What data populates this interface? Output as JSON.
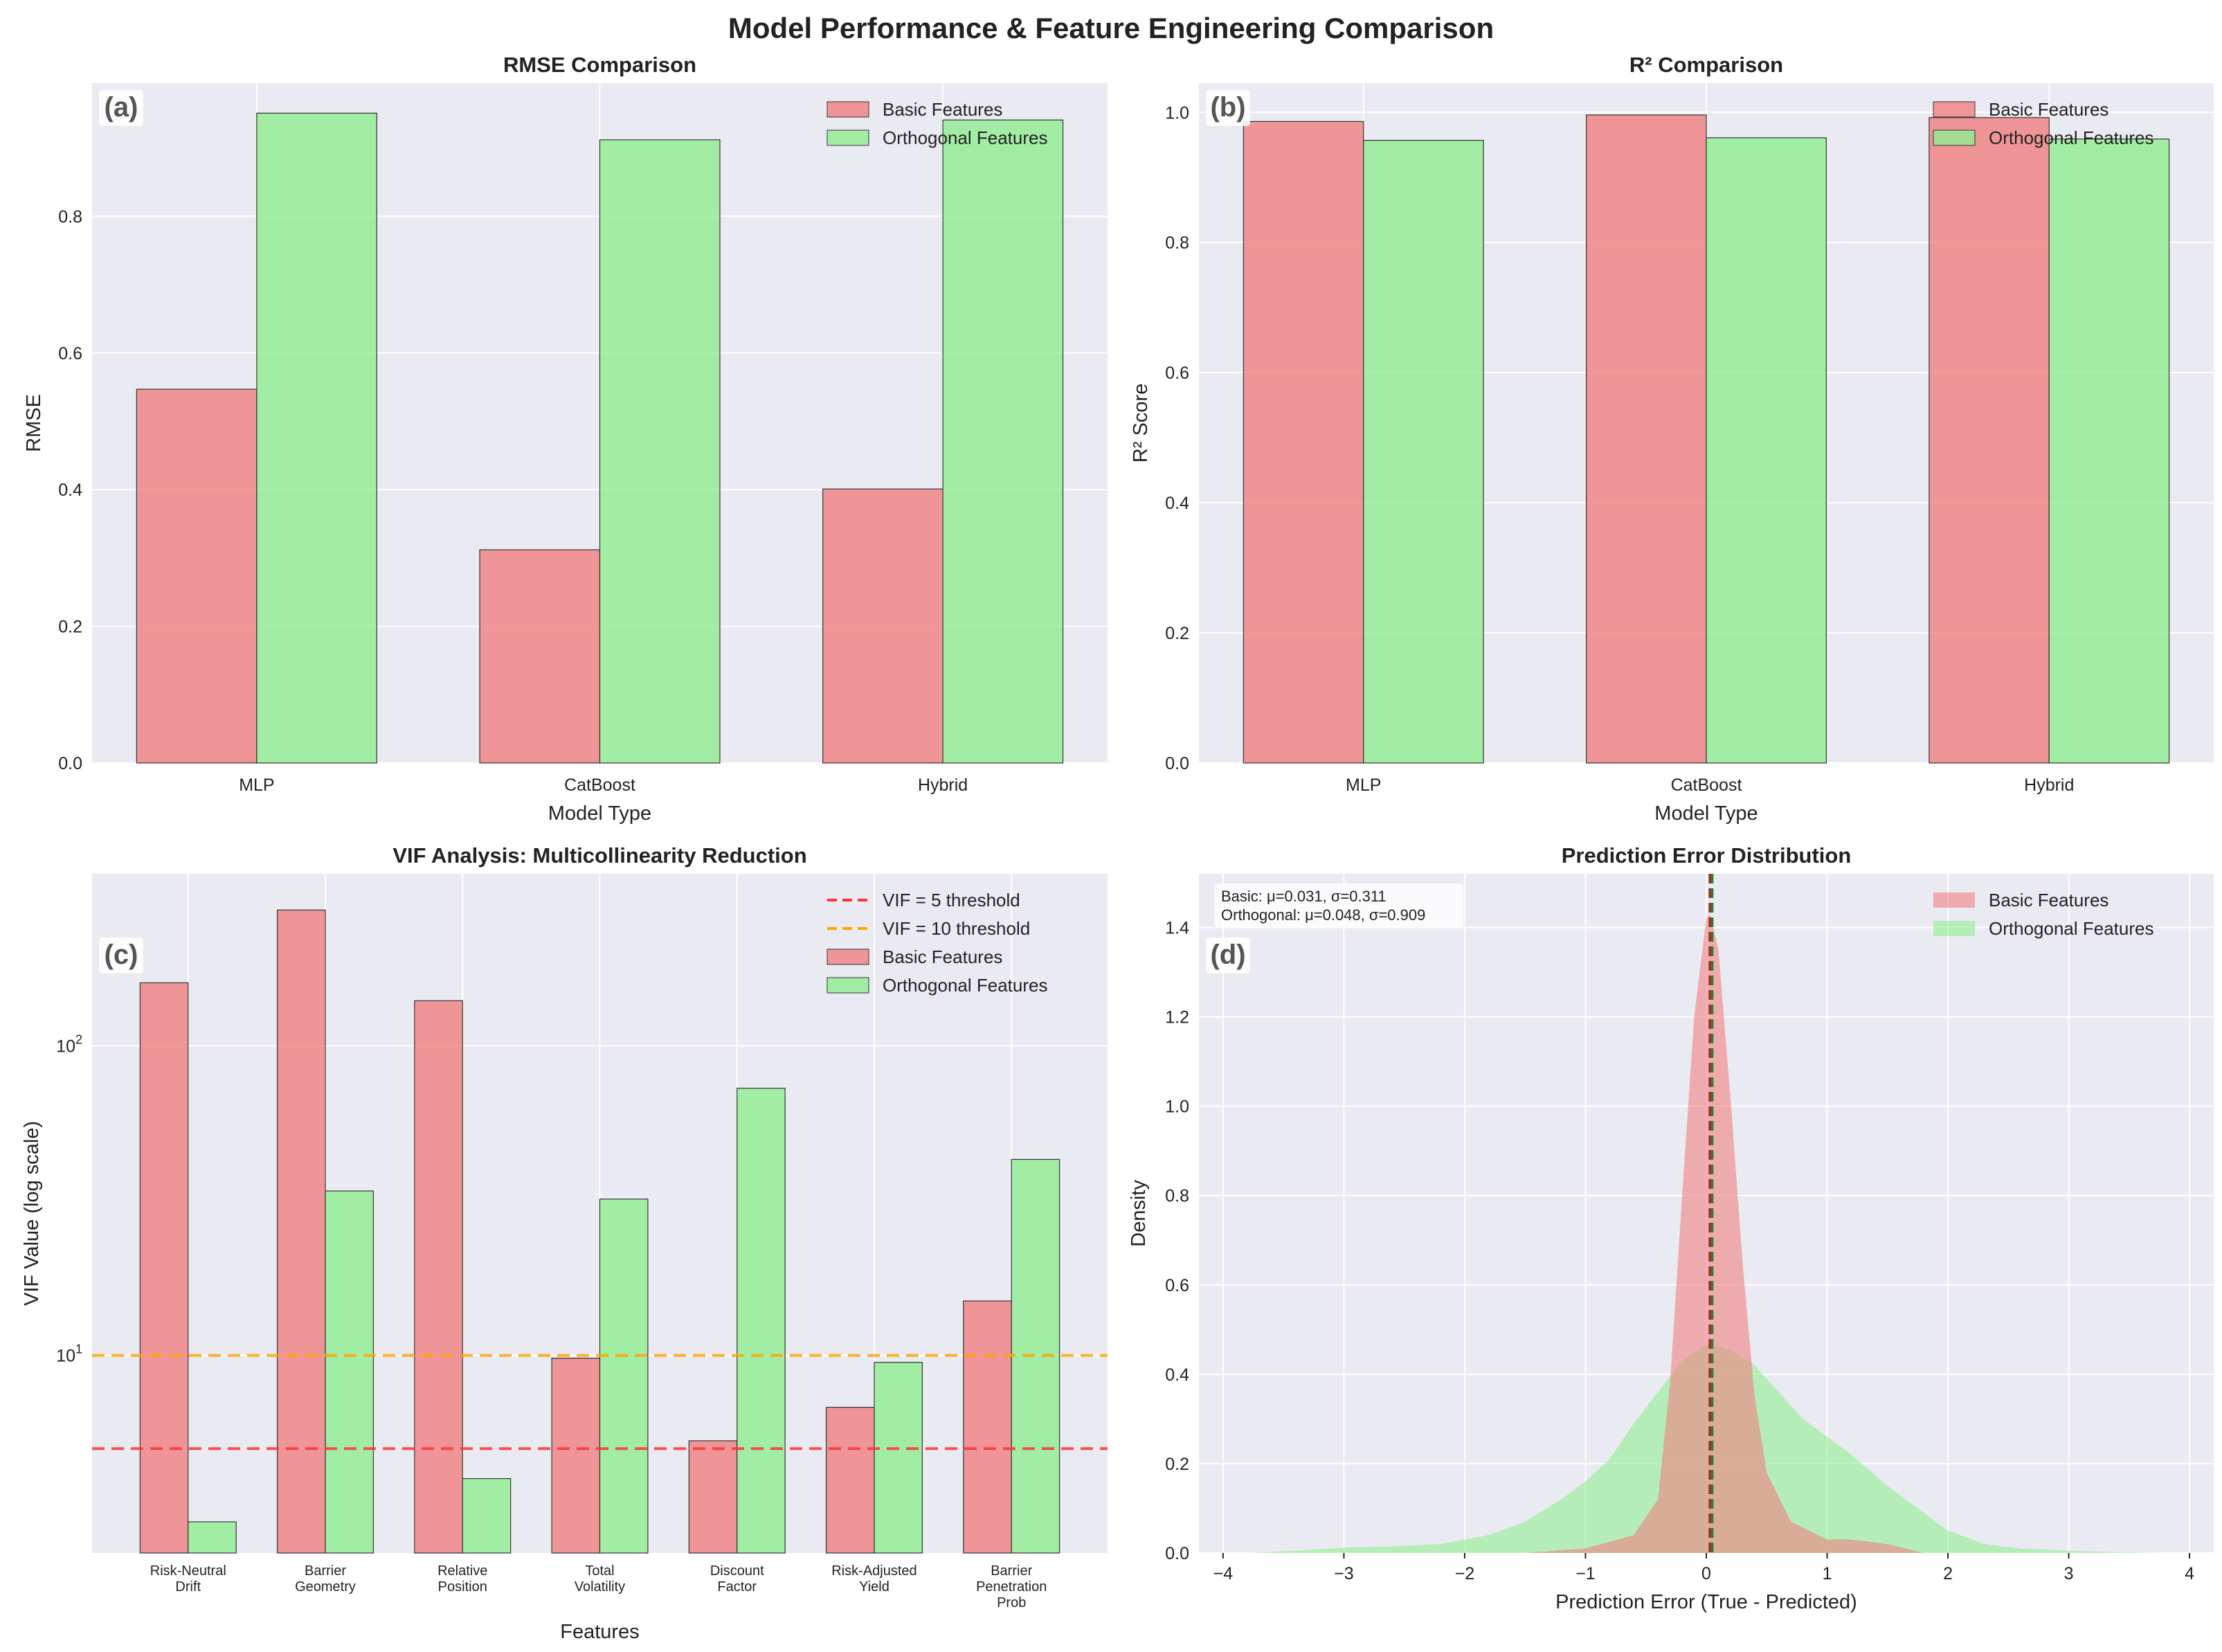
{
  "figure": {
    "title": "Model Performance & Feature Engineering Comparison",
    "colors": {
      "basic": "#f08080",
      "orthogonal": "#90ee90",
      "background": "#eaeaf2",
      "grid": "#ffffff",
      "vif5": "#ff3333",
      "vif10": "#ffa500"
    }
  },
  "chart_data": [
    {
      "id": "a",
      "panel_label": "(a)",
      "type": "bar",
      "title": "RMSE Comparison",
      "xlabel": "Model Type",
      "ylabel": "RMSE",
      "categories": [
        "MLP",
        "CatBoost",
        "Hybrid"
      ],
      "series": [
        {
          "name": "Basic Features",
          "values": [
            0.547,
            0.312,
            0.401
          ]
        },
        {
          "name": "Orthogonal Features",
          "values": [
            0.951,
            0.912,
            0.941
          ]
        }
      ],
      "ylim": [
        0,
        0.995
      ],
      "yticks": [
        0.0,
        0.2,
        0.4,
        0.6,
        0.8
      ],
      "ytick_labels": [
        "0.0",
        "0.2",
        "0.4",
        "0.6",
        "0.8"
      ],
      "grid": true,
      "legend_position": "top-right"
    },
    {
      "id": "b",
      "panel_label": "(b)",
      "type": "bar",
      "title": "R² Comparison",
      "xlabel": "Model Type",
      "ylabel": "R² Score",
      "categories": [
        "MLP",
        "CatBoost",
        "Hybrid"
      ],
      "series": [
        {
          "name": "Basic Features",
          "values": [
            0.986,
            0.996,
            0.992
          ]
        },
        {
          "name": "Orthogonal Features",
          "values": [
            0.957,
            0.961,
            0.959
          ]
        }
      ],
      "ylim": [
        0,
        1.045
      ],
      "yticks": [
        0.0,
        0.2,
        0.4,
        0.6,
        0.8,
        1.0
      ],
      "ytick_labels": [
        "0.0",
        "0.2",
        "0.4",
        "0.6",
        "0.8",
        "1.0"
      ],
      "grid": true,
      "legend_position": "top-right"
    },
    {
      "id": "c",
      "panel_label": "(c)",
      "type": "bar",
      "yscale": "log",
      "title": "VIF Analysis: Multicollinearity Reduction",
      "xlabel": "Features",
      "ylabel": "VIF Value (log scale)",
      "categories": [
        [
          "Risk-Neutral",
          "Drift"
        ],
        [
          "Barrier",
          "Geometry"
        ],
        [
          "Relative",
          "Position"
        ],
        [
          "Total",
          "Volatility"
        ],
        [
          "Discount",
          "Factor"
        ],
        [
          "Risk-Adjusted",
          "Yield"
        ],
        [
          "Barrier",
          "Penetration",
          "Prob"
        ]
      ],
      "series": [
        {
          "name": "Basic Features",
          "values": [
            160,
            275,
            140,
            9.8,
            5.3,
            6.8,
            15
          ]
        },
        {
          "name": "Orthogonal Features",
          "values": [
            2.9,
            34,
            4.0,
            32,
            73,
            9.5,
            43
          ]
        }
      ],
      "ylim": [
        2.3,
        360
      ],
      "yticks": [
        10,
        100
      ],
      "ytick_labels": [
        [
          "10",
          "1"
        ],
        [
          "10",
          "2"
        ]
      ],
      "thresholds": [
        {
          "label": "VIF = 5 threshold",
          "value": 5
        },
        {
          "label": "VIF = 10 threshold",
          "value": 10
        }
      ],
      "grid": true,
      "legend_position": "top-right"
    },
    {
      "id": "d",
      "panel_label": "(d)",
      "type": "area",
      "title": "Prediction Error Distribution",
      "xlabel": "Prediction Error (True - Predicted)",
      "ylabel": "Density",
      "xlim": [
        -4.2,
        4.2
      ],
      "ylim": [
        0,
        1.52
      ],
      "xticks": [
        -4,
        -3,
        -2,
        -1,
        0,
        1,
        2,
        3,
        4
      ],
      "xtick_labels": [
        "−4",
        "−3",
        "−2",
        "−1",
        "0",
        "1",
        "2",
        "3",
        "4"
      ],
      "yticks": [
        0.0,
        0.2,
        0.4,
        0.6,
        0.8,
        1.0,
        1.2,
        1.4
      ],
      "ytick_labels": [
        "0.0",
        "0.2",
        "0.4",
        "0.6",
        "0.8",
        "1.0",
        "1.2",
        "1.4"
      ],
      "series": [
        {
          "name": "Basic Features",
          "x": [
            -1.5,
            -1.0,
            -0.6,
            -0.4,
            -0.3,
            -0.2,
            -0.1,
            0.0,
            0.031,
            0.1,
            0.2,
            0.3,
            0.4,
            0.5,
            0.7,
            1.0,
            1.2,
            1.5,
            1.8
          ],
          "y": [
            0.0,
            0.01,
            0.04,
            0.12,
            0.38,
            0.8,
            1.2,
            1.42,
            1.43,
            1.35,
            1.02,
            0.65,
            0.35,
            0.18,
            0.07,
            0.03,
            0.03,
            0.02,
            0.0
          ]
        },
        {
          "name": "Orthogonal Features",
          "x": [
            -3.8,
            -3.4,
            -3.0,
            -2.6,
            -2.2,
            -1.8,
            -1.5,
            -1.2,
            -1.0,
            -0.8,
            -0.6,
            -0.4,
            -0.2,
            0.0,
            0.048,
            0.2,
            0.4,
            0.6,
            0.8,
            1.0,
            1.2,
            1.5,
            1.8,
            2.0,
            2.3,
            2.6,
            3.0,
            3.4,
            3.8
          ],
          "y": [
            0.0,
            0.005,
            0.012,
            0.015,
            0.02,
            0.04,
            0.07,
            0.12,
            0.16,
            0.21,
            0.29,
            0.36,
            0.43,
            0.465,
            0.467,
            0.455,
            0.42,
            0.36,
            0.3,
            0.26,
            0.22,
            0.15,
            0.09,
            0.05,
            0.02,
            0.01,
            0.005,
            0.002,
            0.0
          ]
        }
      ],
      "mean_lines": [
        {
          "name": "Basic Features",
          "value": 0.031
        },
        {
          "name": "Orthogonal Features",
          "value": 0.048
        }
      ],
      "stats_text": [
        "Basic: μ=0.031, σ=0.311",
        "Orthogonal: μ=0.048, σ=0.909"
      ],
      "grid": true,
      "legend_position": "top-right"
    }
  ]
}
